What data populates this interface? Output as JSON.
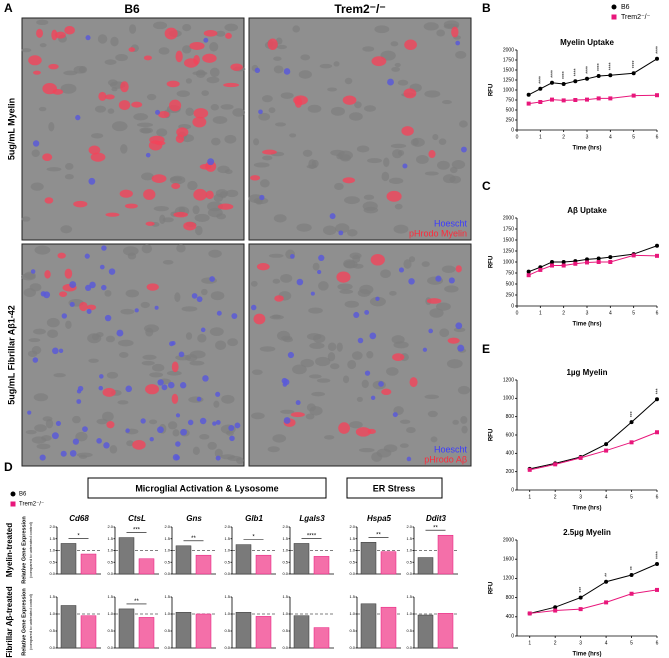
{
  "panel_labels": [
    "A",
    "B",
    "C",
    "D",
    "E"
  ],
  "images": {
    "columns": [
      "B6",
      "Trem2⁻/⁻"
    ],
    "rows": [
      "5ug/mL Myelin",
      "5ug/mL Fibrillar Aβ1-42"
    ],
    "overlays": [
      [
        "Hoescht",
        "pHrodo Myelin"
      ],
      [
        "Hoescht",
        "pHrodo Aβ"
      ]
    ]
  },
  "gene_panel": {
    "groups": [
      "Microglial Activation & Lysosome",
      "ER Stress"
    ],
    "rows": [
      "Myelin-treated",
      "Fibrillar Aβ-treated"
    ],
    "y_label": "Relative Gene Expression",
    "y_sublabel": "(compared to untreated control)"
  },
  "chart_data": [
    {
      "type": "line",
      "title": "Myelin Uptake",
      "x_label": "Time (hrs)",
      "y_label": "RFU",
      "x": [
        0.5,
        1,
        1.5,
        2,
        2.5,
        3,
        3.5,
        4,
        5,
        6
      ],
      "series": [
        {
          "name": "B6",
          "color": "#000000",
          "values": [
            880,
            1030,
            1180,
            1150,
            1220,
            1280,
            1350,
            1370,
            1420,
            1780
          ]
        },
        {
          "name": "Trem2⁻/⁻",
          "color": "#e8177b",
          "values": [
            660,
            700,
            760,
            740,
            750,
            760,
            790,
            790,
            860,
            870
          ]
        }
      ],
      "significance": [
        null,
        "****",
        "****",
        "****",
        "****",
        "****",
        "****",
        "****",
        "****",
        "****"
      ],
      "xlim": [
        0,
        6
      ],
      "xticks": [
        0,
        1,
        2,
        3,
        4,
        5,
        6
      ],
      "ylim": [
        0,
        2000
      ],
      "yticks": [
        0,
        250,
        500,
        750,
        1000,
        1250,
        1500,
        1750,
        2000
      ]
    },
    {
      "type": "line",
      "title": "Aβ Uptake",
      "x_label": "Time (hrs)",
      "y_label": "RFU",
      "x": [
        0.5,
        1,
        1.5,
        2,
        2.5,
        3,
        3.5,
        4,
        5,
        6
      ],
      "series": [
        {
          "name": "B6",
          "color": "#000000",
          "values": [
            780,
            880,
            1000,
            1000,
            1020,
            1060,
            1080,
            1110,
            1180,
            1370
          ]
        },
        {
          "name": "Trem2⁻/⁻",
          "color": "#e8177b",
          "values": [
            700,
            820,
            920,
            920,
            960,
            990,
            1000,
            1000,
            1150,
            1140
          ]
        }
      ],
      "xlim": [
        0,
        6
      ],
      "xticks": [
        0,
        1,
        2,
        3,
        4,
        5,
        6
      ],
      "ylim": [
        0,
        2000
      ],
      "yticks": [
        0,
        250,
        500,
        750,
        1000,
        1250,
        1500,
        1750,
        2000
      ]
    },
    {
      "type": "line",
      "title": "1µg Myelin",
      "x_label": "Time (hrs)",
      "y_label": "RFU",
      "x": [
        1,
        2,
        3,
        4,
        5,
        6
      ],
      "series": [
        {
          "name": "B6",
          "color": "#000000",
          "values": [
            230,
            290,
            360,
            500,
            740,
            990
          ]
        },
        {
          "name": "Trem2⁻/⁻",
          "color": "#e8177b",
          "values": [
            220,
            280,
            350,
            430,
            520,
            630
          ]
        }
      ],
      "significance": [
        null,
        null,
        null,
        null,
        "***",
        "***"
      ],
      "xlim": [
        0.5,
        6
      ],
      "xticks": [
        1,
        2,
        3,
        4,
        5,
        6
      ],
      "ylim": [
        0,
        1200
      ],
      "yticks": [
        0,
        200,
        400,
        600,
        800,
        1000,
        1200
      ]
    },
    {
      "type": "line",
      "title": "2.5µg Myelin",
      "x_label": "Time (hrs)",
      "y_label": "RFU",
      "x": [
        1,
        2,
        3,
        4,
        5,
        6
      ],
      "series": [
        {
          "name": "B6",
          "color": "#000000",
          "values": [
            470,
            600,
            800,
            1130,
            1270,
            1500
          ]
        },
        {
          "name": "Trem2⁻/⁻",
          "color": "#e8177b",
          "values": [
            470,
            530,
            560,
            700,
            880,
            960
          ]
        }
      ],
      "significance": [
        null,
        null,
        "***",
        "**",
        "**",
        "****"
      ],
      "xlim": [
        0.5,
        6
      ],
      "xticks": [
        1,
        2,
        3,
        4,
        5,
        6
      ],
      "ylim": [
        0,
        2000
      ],
      "yticks": [
        0,
        400,
        800,
        1200,
        1600,
        2000
      ]
    },
    {
      "type": "bar",
      "categories": [
        "Cd68",
        "CtsL",
        "Gns",
        "Glb1",
        "Lgals3",
        "Hspa5",
        "Ddit3"
      ],
      "series": [
        {
          "name": "B6",
          "color": "#7a7a7a",
          "values": [
            1.3,
            1.55,
            1.2,
            1.25,
            1.3,
            1.35,
            0.7
          ]
        },
        {
          "name": "Trem2⁻/⁻",
          "color": "#f46fa9",
          "values": [
            0.85,
            0.65,
            0.8,
            0.8,
            0.75,
            0.95,
            1.65
          ]
        }
      ],
      "significance": [
        "*",
        "***",
        "**",
        "*",
        "****",
        "**",
        "**"
      ],
      "reference": 1,
      "ylim": [
        0,
        2
      ],
      "yticks": [
        {
          "value": 0,
          "label": "0.0"
        },
        0.5,
        {
          "value": 1,
          "label": "1.0"
        },
        1.5,
        {
          "value": 2,
          "label": "2.0"
        }
      ]
    },
    {
      "type": "bar",
      "series": [
        {
          "name": "B6",
          "color": "#7a7a7a",
          "values": [
            1.25,
            1.15,
            1.05,
            1.05,
            0.95,
            1.3,
            0.97
          ]
        },
        {
          "name": "Trem2⁻/⁻",
          "color": "#f46fa9",
          "values": [
            0.95,
            0.9,
            1.0,
            0.93,
            0.6,
            1.2,
            1.02
          ]
        }
      ],
      "significance": [
        null,
        "**",
        null,
        null,
        null,
        null,
        null
      ],
      "reference": 1,
      "ylim": [
        0,
        1.5
      ],
      "yticks": [
        {
          "value": 0,
          "label": "0.0"
        },
        0.5,
        {
          "value": 1,
          "label": "1.0"
        },
        1.5
      ]
    }
  ]
}
